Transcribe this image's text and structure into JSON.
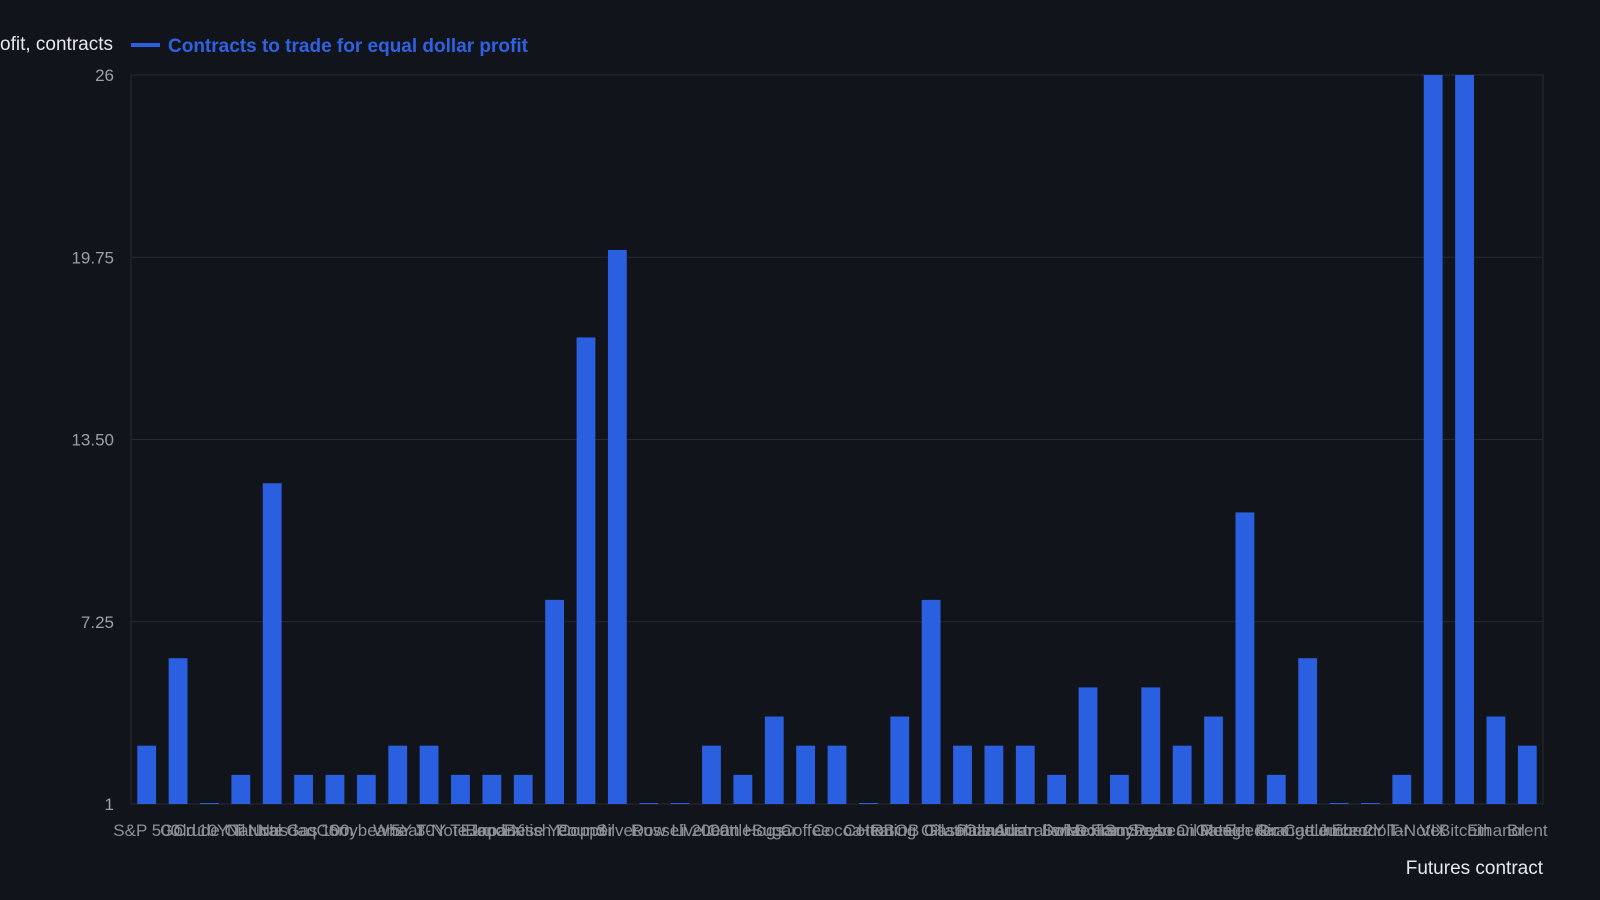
{
  "chart_data": {
    "type": "bar",
    "ylabel": "Equal dollar profit, contracts",
    "xlabel": "Futures contract",
    "ylim": [
      1,
      26
    ],
    "yticks": [
      "1",
      "7.25",
      "13.50",
      "19.75",
      "26"
    ],
    "grid": true,
    "legend_position": "top-left",
    "series": [
      {
        "name": "Contracts to trade for equal dollar profit",
        "color": "#2a5fe0",
        "values": [
          3,
          6,
          1,
          2,
          12,
          2,
          2,
          2,
          3,
          3,
          2,
          2,
          2,
          8,
          17,
          20,
          1,
          1,
          3,
          2,
          4,
          3,
          3,
          1,
          4,
          8,
          3,
          3,
          3,
          2,
          5,
          2,
          5,
          3,
          4,
          11,
          2,
          6,
          1,
          1,
          2,
          26,
          26,
          4,
          3
        ]
      }
    ],
    "categories": [
      "S&P 500",
      "Gold",
      "Crude Oil",
      "10Y T-Note",
      "Natural Gas",
      "Nasdaq 100",
      "Corn",
      "Soybeans",
      "Wheat",
      "5Y T-Note",
      "30Y T-Bond",
      "Euro FX",
      "Japanese Yen",
      "British Pound",
      "Copper",
      "Silver",
      "Dow",
      "Russell 2000",
      "Live Cattle",
      "Lean Hogs",
      "Sugar",
      "Coffee",
      "Cocoa",
      "Cotton",
      "Heating Oil",
      "RBOB Gasoline",
      "Platinum",
      "Palladium",
      "Canadian Dollar",
      "Australian Dollar",
      "Swiss Franc",
      "Mexican Peso",
      "Soybean Oil",
      "Soybean Meal",
      "Oats",
      "Rough Rice",
      "Feeder Cattle",
      "Orange Juice",
      "Lumber",
      "Eurodollar",
      "2Y T-Note",
      "VIX",
      "Bitcoin",
      "Ethanol",
      "Brent"
    ]
  }
}
